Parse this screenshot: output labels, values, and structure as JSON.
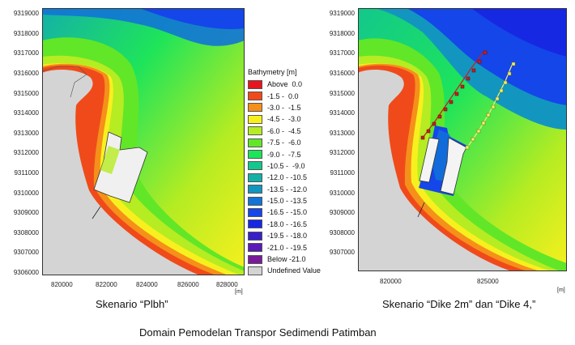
{
  "left_map": {
    "y_ticks": [
      "9319000",
      "9318000",
      "9317000",
      "9316000",
      "9315000",
      "9314000",
      "9313000",
      "9312000",
      "9311000",
      "9310000",
      "9309000",
      "9308000",
      "9307000",
      "9306000"
    ],
    "x_ticks": [
      "820000",
      "822000",
      "824000",
      "826000",
      "828000"
    ],
    "unit": "[m]",
    "caption": "Skenario “Plbh”"
  },
  "right_map": {
    "y_ticks": [
      "9319000",
      "9318000",
      "9317000",
      "9316000",
      "9315000",
      "9314000",
      "9313000",
      "9312000",
      "9311000",
      "9310000",
      "9309000",
      "9308000",
      "9307000"
    ],
    "x_ticks": [
      "820000",
      "825000"
    ],
    "unit": "[m]",
    "caption": "Skenario “Dike 2m” dan “Dike 4,”"
  },
  "legend": {
    "title": "Bathymetry [m]",
    "items": [
      {
        "label": "Above  0.0",
        "color": "#e8151e"
      },
      {
        "label": "-1.5 -  0.0",
        "color": "#f04a1a"
      },
      {
        "label": "-3.0 -  -1.5",
        "color": "#f5901a"
      },
      {
        "label": "-4.5 -  -3.0",
        "color": "#f8f01e"
      },
      {
        "label": "-6.0 -  -4.5",
        "color": "#b6ec22"
      },
      {
        "label": "-7.5 -  -6.0",
        "color": "#62e628"
      },
      {
        "label": "-9.0 -  -7.5",
        "color": "#1ee45a"
      },
      {
        "label": "-10.5 -  -9.0",
        "color": "#12c88c"
      },
      {
        "label": "-12.0 - -10.5",
        "color": "#14b0a8"
      },
      {
        "label": "-13.5 - -12.0",
        "color": "#1296c0"
      },
      {
        "label": "-15.0 - -13.5",
        "color": "#1274d6"
      },
      {
        "label": "-16.5 - -15.0",
        "color": "#1446ea"
      },
      {
        "label": "-18.0 - -16.5",
        "color": "#1628e2"
      },
      {
        "label": "-19.5 - -18.0",
        "color": "#3a20c8"
      },
      {
        "label": "-21.0 - -19.5",
        "color": "#5a1ab8"
      },
      {
        "label": "Below -21.0",
        "color": "#7a1a9a"
      },
      {
        "label": "Undefined Value",
        "color": "#d4d4d4"
      }
    ]
  },
  "figure_caption": "Domain Pemodelan Transpor Sedimendi Patimban"
}
